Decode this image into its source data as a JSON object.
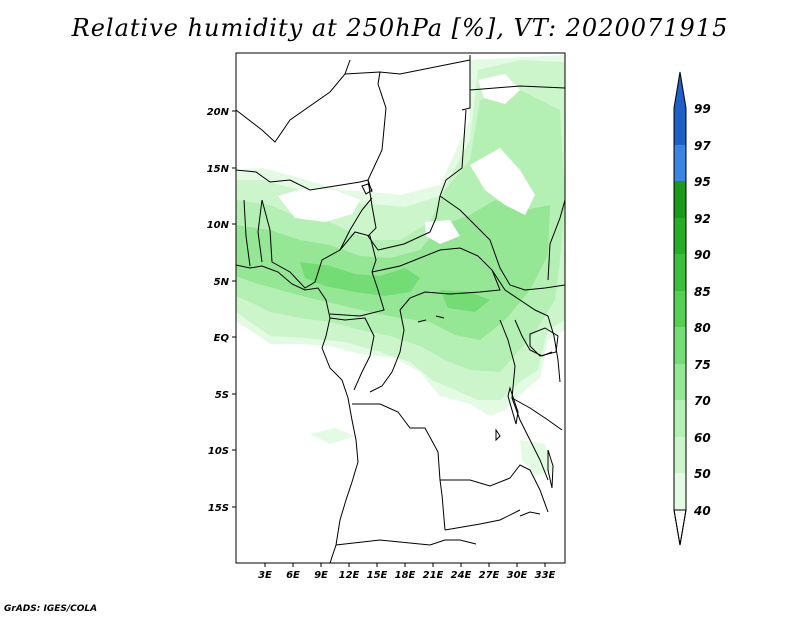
{
  "title": "Relative humidity at 250hPa [%], VT: 2020071915",
  "credit": "GrADS: IGES/COLA",
  "map": {
    "lon_labels": [
      "3E",
      "6E",
      "9E",
      "12E",
      "15E",
      "18E",
      "21E",
      "24E",
      "27E",
      "30E",
      "33E"
    ],
    "lat_labels": [
      "20N",
      "15N",
      "10N",
      "5N",
      "EQ",
      "5S",
      "10S",
      "15S"
    ]
  },
  "colorbar": {
    "levels": [
      "99",
      "97",
      "95",
      "92",
      "90",
      "85",
      "80",
      "75",
      "70",
      "60",
      "50",
      "40"
    ],
    "colors": {
      "99": "#1f5fc8",
      "97": "#3b84e0",
      "95": "#1a9a1a",
      "92": "#26ac26",
      "90": "#3cbf3c",
      "85": "#55d055",
      "80": "#74dc74",
      "75": "#95e695",
      "70": "#b4f0b4",
      "60": "#ccf5cc",
      "50": "#e3fae3",
      "40": "#ffffff"
    }
  }
}
